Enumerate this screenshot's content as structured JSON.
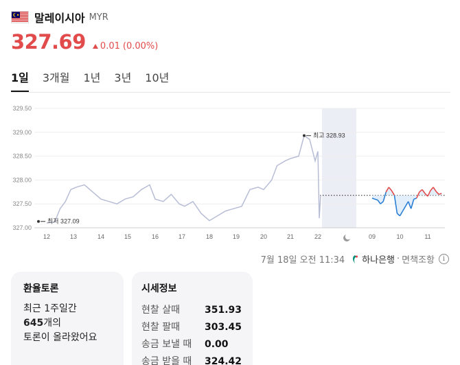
{
  "header": {
    "title": "말레이시아",
    "code": "MYR",
    "flag_icon": "malaysia-flag-icon"
  },
  "quote": {
    "price": "327.69",
    "change": "0.01",
    "change_pct": "(0.00%)",
    "direction": "up",
    "color": "#e24b4b"
  },
  "tabs": [
    {
      "label": "1일",
      "active": true
    },
    {
      "label": "3개월",
      "active": false
    },
    {
      "label": "1년",
      "active": false
    },
    {
      "label": "3년",
      "active": false
    },
    {
      "label": "10년",
      "active": false
    }
  ],
  "chart_data": {
    "type": "line",
    "yticks": [
      "329.50",
      "329.00",
      "328.50",
      "328.00",
      "327.50",
      "327.00"
    ],
    "ylim": [
      327.0,
      329.5
    ],
    "xticks": [
      "12",
      "13",
      "14",
      "15",
      "16",
      "17",
      "18",
      "19",
      "20",
      "21",
      "22",
      "09",
      "10",
      "11"
    ],
    "night_icon": "moon-icon",
    "annotations": {
      "high_label": "최고 328.93",
      "low_label": "최저 327.09"
    },
    "reference_value": 327.68,
    "series": [
      {
        "x": [
          12.0,
          12.3,
          12.5,
          12.7,
          12.9,
          13.1,
          13.4,
          13.7,
          14.0,
          14.3,
          14.6,
          14.9,
          15.2,
          15.5,
          15.8,
          16.0,
          16.3,
          16.6,
          16.9,
          17.1,
          17.4,
          17.7,
          18.0,
          18.3,
          18.6,
          18.9,
          19.2,
          19.5,
          19.8,
          20.0,
          20.3,
          20.5,
          20.8,
          21.0,
          21.3,
          21.5,
          21.7,
          21.9,
          22.0,
          22.05,
          22.1
        ],
        "values": [
          327.1,
          327.12,
          327.4,
          327.55,
          327.8,
          327.85,
          327.9,
          327.75,
          327.6,
          327.55,
          327.5,
          327.6,
          327.65,
          327.8,
          327.9,
          327.6,
          327.55,
          327.7,
          327.5,
          327.45,
          327.55,
          327.3,
          327.15,
          327.25,
          327.35,
          327.4,
          327.45,
          327.8,
          327.85,
          327.8,
          328.0,
          328.3,
          328.4,
          328.45,
          328.5,
          328.93,
          328.85,
          328.4,
          328.6,
          327.2,
          327.68
        ]
      },
      {
        "x": [
          9.0,
          9.1,
          9.2,
          9.3,
          9.4,
          9.5,
          9.6,
          9.7,
          9.8,
          9.9,
          10.0,
          10.1,
          10.2,
          10.3,
          10.4,
          10.5,
          10.6,
          10.7,
          10.8,
          10.9,
          11.0,
          11.1,
          11.2,
          11.3,
          11.4,
          11.5
        ],
        "values": [
          327.62,
          327.6,
          327.58,
          327.5,
          327.55,
          327.75,
          327.85,
          327.78,
          327.68,
          327.3,
          327.25,
          327.35,
          327.45,
          327.55,
          327.4,
          327.6,
          327.62,
          327.75,
          327.8,
          327.72,
          327.66,
          327.78,
          327.85,
          327.76,
          327.7,
          327.72
        ]
      }
    ]
  },
  "footer": {
    "timestamp": "7월 18일 오전 11:34",
    "bank": "하나은행",
    "sep": "·",
    "disclaimer": "면책조항"
  },
  "forum": {
    "title": "환율토론",
    "line1": "최근 1주일간",
    "count": "645",
    "count_suffix": "개의",
    "line3": "토론이 올라왔어요"
  },
  "rates": {
    "title": "시세정보",
    "rows": [
      {
        "label": "현찰 살때",
        "value": "351.93"
      },
      {
        "label": "현찰 팔때",
        "value": "303.45"
      },
      {
        "label": "송금 보낼 때",
        "value": "0.00"
      },
      {
        "label": "송금 받을 때",
        "value": "324.42"
      }
    ]
  }
}
